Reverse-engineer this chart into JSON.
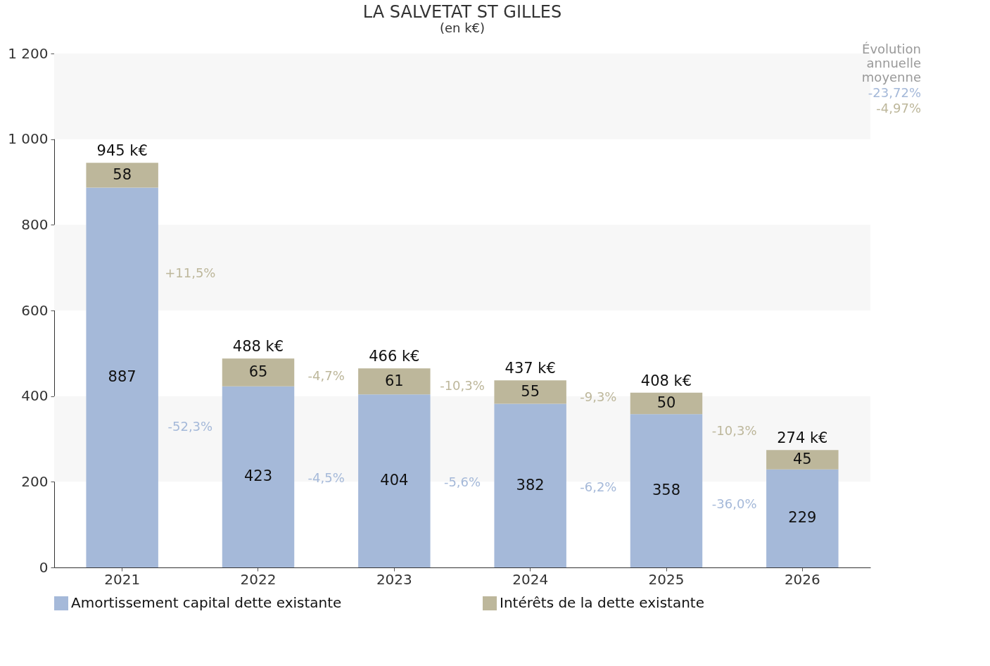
{
  "chart_data": {
    "type": "bar",
    "title": "LA SALVETAT ST GILLES",
    "subtitle": "(en k€)",
    "stacked": true,
    "categories": [
      "2021",
      "2022",
      "2023",
      "2024",
      "2025",
      "2026"
    ],
    "series": [
      {
        "name": "Amortissement capital dette existante",
        "color": "#a5b9d9",
        "values": [
          887,
          423,
          404,
          382,
          358,
          229
        ]
      },
      {
        "name": "Intérêts de la dette existante",
        "color": "#bdb79b",
        "values": [
          58,
          65,
          61,
          55,
          50,
          45
        ]
      }
    ],
    "ylim": [
      0,
      1200
    ],
    "yticks": [
      0,
      200,
      400,
      600,
      800,
      {
        "value": 1000,
        "label": "1 000"
      },
      {
        "value": 1200,
        "label": "1 200"
      }
    ],
    "data_labels": true,
    "totals": [
      "945 k€",
      "488 k€",
      "466 k€",
      "437 k€",
      "408 k€",
      "274 k€"
    ],
    "bands": [
      {
        "axis": "y",
        "from": 200,
        "to": 400,
        "color": "#f7f7f7"
      },
      {
        "axis": "y",
        "from": 600,
        "to": 800,
        "color": "#f7f7f7"
      },
      {
        "axis": "y",
        "from": 1000,
        "to": 1200,
        "color": "#f7f7f7"
      }
    ],
    "legend": "bottom",
    "annotations": [
      "+11,5%",
      "-52,3%",
      "-4,7%",
      "-4,5%",
      "-10,3%",
      "-5,6%",
      "-9,3%",
      "-6,2%",
      "-10,3%",
      "-36,0%",
      "Évolution annuelle moyenne",
      "-23,72%",
      "-4,97%"
    ]
  }
}
